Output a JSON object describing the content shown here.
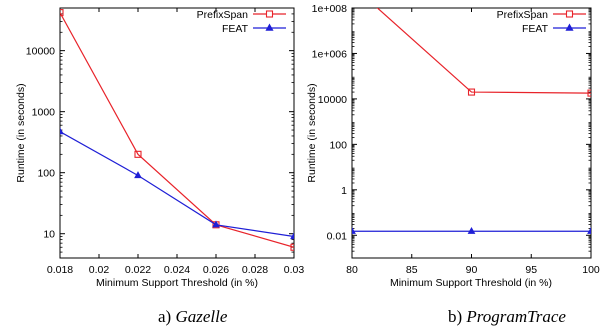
{
  "chart_data": [
    {
      "type": "line",
      "caption_prefix": "a) ",
      "caption_name": "Gazelle",
      "xlabel": "Minimum Support Threshold (in %)",
      "ylabel": "Runtime (in seconds)",
      "xlim": [
        0.018,
        0.03
      ],
      "ylim": [
        4,
        50000
      ],
      "yscale": "log",
      "xticks": [
        0.018,
        0.02,
        0.022,
        0.024,
        0.026,
        0.028,
        0.03
      ],
      "xticklabels": [
        "0.018",
        "0.02",
        "0.022",
        "0.024",
        "0.026",
        "0.028",
        "0.03"
      ],
      "yticks": [
        10,
        100,
        1000,
        10000
      ],
      "yticklabels": [
        "10",
        "100",
        "1000",
        "10000"
      ],
      "legend_position": "top-right",
      "series": [
        {
          "name": "PrefixSpan",
          "color": "#e8232a",
          "marker": "square",
          "x": [
            0.018,
            0.022,
            0.026,
            0.03
          ],
          "y": [
            42000,
            200,
            14,
            6
          ]
        },
        {
          "name": "FEAT",
          "color": "#1f1fd6",
          "marker": "triangle",
          "x": [
            0.018,
            0.022,
            0.026,
            0.03
          ],
          "y": [
            470,
            90,
            14,
            9
          ]
        }
      ]
    },
    {
      "type": "line",
      "caption_prefix": "b) ",
      "caption_name": "ProgramTrace",
      "xlabel": "Minimum Support Threshold (in %)",
      "ylabel": "Runtime (in seconds)",
      "xlim": [
        80,
        100
      ],
      "ylim": [
        0.001,
        100000000
      ],
      "yscale": "log",
      "xticks": [
        80,
        85,
        90,
        95,
        100
      ],
      "xticklabels": [
        "80",
        "85",
        "90",
        "95",
        "100"
      ],
      "yticks": [
        0.01,
        1,
        100,
        10000,
        1000000,
        100000000
      ],
      "yticklabels": [
        "0.01",
        "1",
        "100",
        "10000",
        "1e+006",
        "1e+008"
      ],
      "legend_position": "top-right",
      "series": [
        {
          "name": "PrefixSpan",
          "color": "#e8232a",
          "marker": "square",
          "x": [
            80,
            90,
            100
          ],
          "y": [
            1000000000,
            20000,
            18000
          ]
        },
        {
          "name": "FEAT",
          "color": "#1f1fd6",
          "marker": "triangle",
          "x": [
            80,
            90,
            100
          ],
          "y": [
            0.015,
            0.015,
            0.015
          ]
        }
      ]
    }
  ]
}
